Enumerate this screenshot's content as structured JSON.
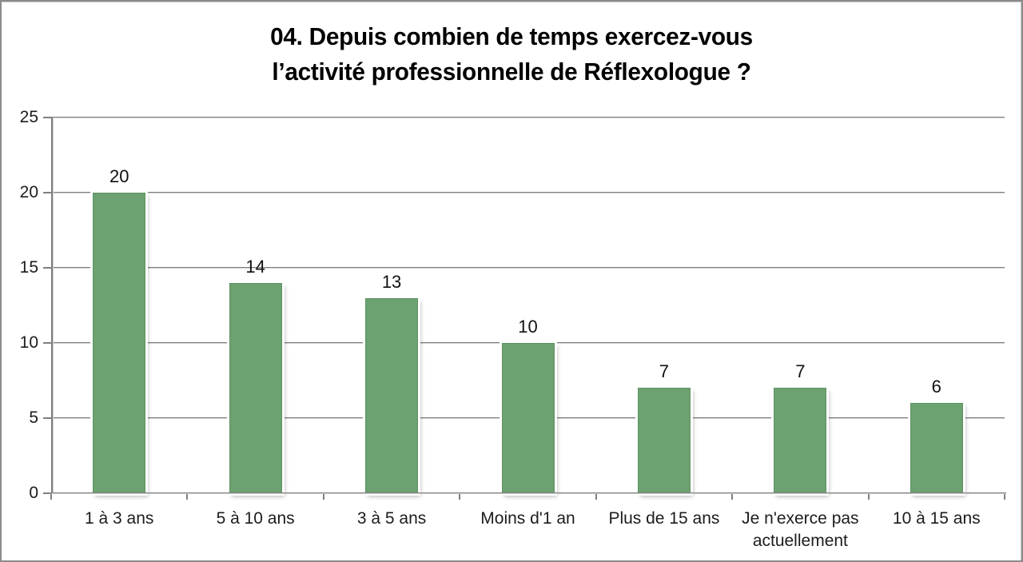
{
  "title": {
    "line1": "04. Depuis combien de temps exercez-vous",
    "line2": "l’activité professionnelle de Réflexologue ?"
  },
  "chart_data": {
    "type": "bar",
    "title": "04. Depuis combien de temps exercez-vous l’activité professionnelle de Réflexologue ?",
    "title_lines": [
      "04. Depuis combien de temps exercez-vous",
      "l’activité professionnelle de Réflexologue ?"
    ],
    "categories": [
      "1 à 3 ans",
      "5 à 10 ans",
      "3 à 5 ans",
      "Moins d'1 an",
      "Plus de 15 ans",
      "Je n'exerce pas actuellement",
      "10 à 15 ans"
    ],
    "values": [
      20,
      14,
      13,
      10,
      7,
      7,
      6
    ],
    "data_labels": [
      "20",
      "14",
      "13",
      "10",
      "7",
      "7",
      "6"
    ],
    "xlabel": "",
    "ylabel": "",
    "ylim": [
      0,
      25
    ],
    "yticks": [
      0,
      5,
      10,
      15,
      20,
      25
    ],
    "grid": true,
    "legend": false,
    "data_labels_shown": true,
    "colors": {
      "bar": "#6CA171",
      "bar_edge": "#5F9263",
      "gridline": "#7F7F7F",
      "axis": "#7F7F7F",
      "text": "#1C1C1C",
      "frame_border": "#8A8A8A",
      "background": "#FFFFFF"
    }
  }
}
